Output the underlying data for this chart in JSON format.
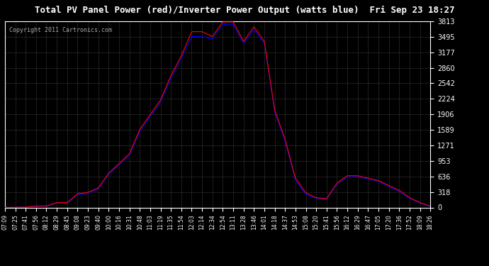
{
  "title": "Total PV Panel Power (red)/Inverter Power Output (watts blue)  Fri Sep 23 18:27",
  "copyright": "Copyright 2011 Cartronics.com",
  "bg_color": "#000000",
  "plot_bg_color": "#000000",
  "grid_color": "#555555",
  "title_color": "#ffffff",
  "text_color": "#ffffff",
  "red_color": "#ff0000",
  "blue_color": "#0000ff",
  "ylim": [
    0.0,
    3812.8
  ],
  "yticks": [
    0.0,
    317.7,
    635.5,
    953.2,
    1270.9,
    1588.7,
    1906.4,
    2224.1,
    2541.9,
    2859.6,
    3177.3,
    3495.1,
    3812.8
  ],
  "xtick_labels": [
    "07:09",
    "07:25",
    "07:41",
    "07:56",
    "08:12",
    "08:29",
    "08:45",
    "09:08",
    "09:23",
    "09:40",
    "10:00",
    "10:16",
    "10:31",
    "10:48",
    "11:03",
    "11:19",
    "11:35",
    "11:54",
    "12:03",
    "12:14",
    "12:34",
    "12:54",
    "13:11",
    "13:28",
    "13:46",
    "14:01",
    "14:18",
    "14:37",
    "14:53",
    "15:08",
    "15:20",
    "15:41",
    "15:56",
    "16:12",
    "16:29",
    "16:47",
    "17:05",
    "17:20",
    "17:36",
    "17:52",
    "18:09",
    "18:26"
  ],
  "red_data": [
    0,
    5,
    5,
    30,
    30,
    100,
    100,
    280,
    310,
    400,
    700,
    900,
    1100,
    1600,
    1900,
    2200,
    2700,
    3100,
    3600,
    3600,
    3500,
    3800,
    3800,
    3400,
    3700,
    3400,
    2000,
    1400,
    600,
    300,
    200,
    180,
    500,
    650,
    650,
    600,
    550,
    450,
    350,
    200,
    100,
    30
  ],
  "blue_data": [
    0,
    5,
    5,
    25,
    25,
    90,
    90,
    260,
    290,
    380,
    680,
    870,
    1070,
    1560,
    1860,
    2160,
    2650,
    3050,
    3500,
    3500,
    3450,
    3750,
    3750,
    3360,
    3640,
    3360,
    1960,
    1360,
    560,
    265,
    185,
    165,
    475,
    630,
    630,
    580,
    530,
    430,
    330,
    185,
    90,
    20
  ]
}
